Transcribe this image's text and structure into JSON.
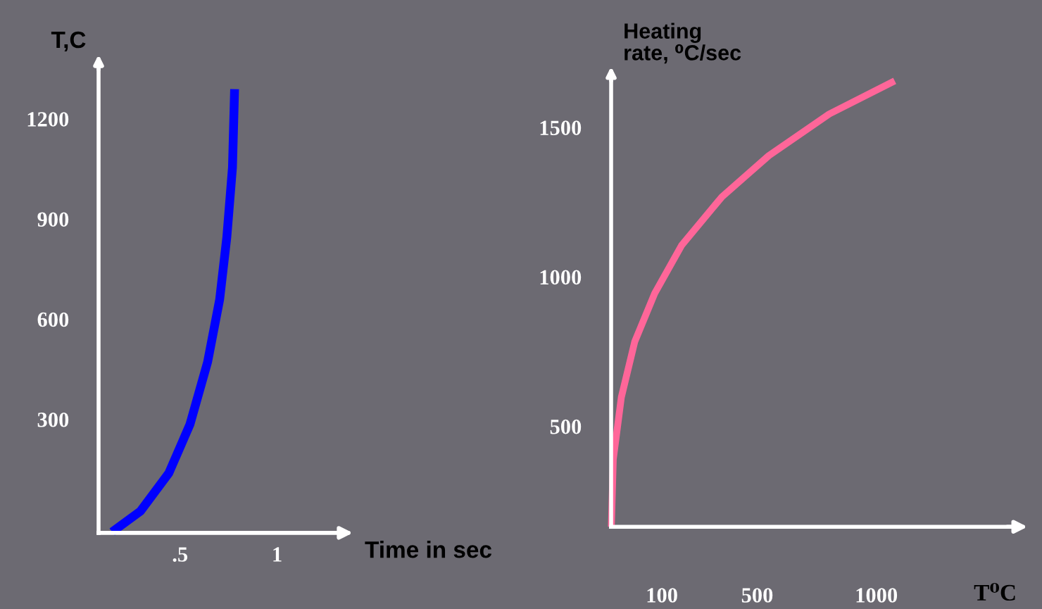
{
  "chart_data": [
    {
      "type": "line",
      "xlabel": "Time in sec",
      "ylabel": "T,C",
      "color": "#0000ff",
      "x": [
        0.15,
        0.296,
        0.442,
        0.551,
        0.642,
        0.704,
        0.741,
        0.77,
        0.781
      ],
      "values": [
        -37,
        25,
        139,
        285,
        472,
        659,
        846,
        1054,
        1289
      ],
      "xlim": [
        0.08,
        1.35
      ],
      "ylim": [
        -40,
        1370
      ],
      "xticks": [
        {
          "value": 0.5,
          "label": ".5"
        },
        1
      ],
      "yticks": [
        300,
        600,
        900,
        1200
      ],
      "grid": false
    },
    {
      "type": "line",
      "xlabel": "T⁰C",
      "ylabel": "Heating\nrate, ⁰C/sec",
      "color": "#ff6699",
      "x": [
        -112,
        -104,
        -70,
        -14,
        70,
        183,
        352,
        549,
        802,
        1077
      ],
      "values": [
        164,
        390,
        598,
        783,
        945,
        1106,
        1268,
        1406,
        1545,
        1656
      ],
      "xlim": [
        -113,
        1575
      ],
      "ylim": [
        164,
        1680
      ],
      "xticks": [
        100,
        500,
        1000
      ],
      "yticks": [
        500,
        1000,
        1500
      ],
      "grid": false
    }
  ]
}
